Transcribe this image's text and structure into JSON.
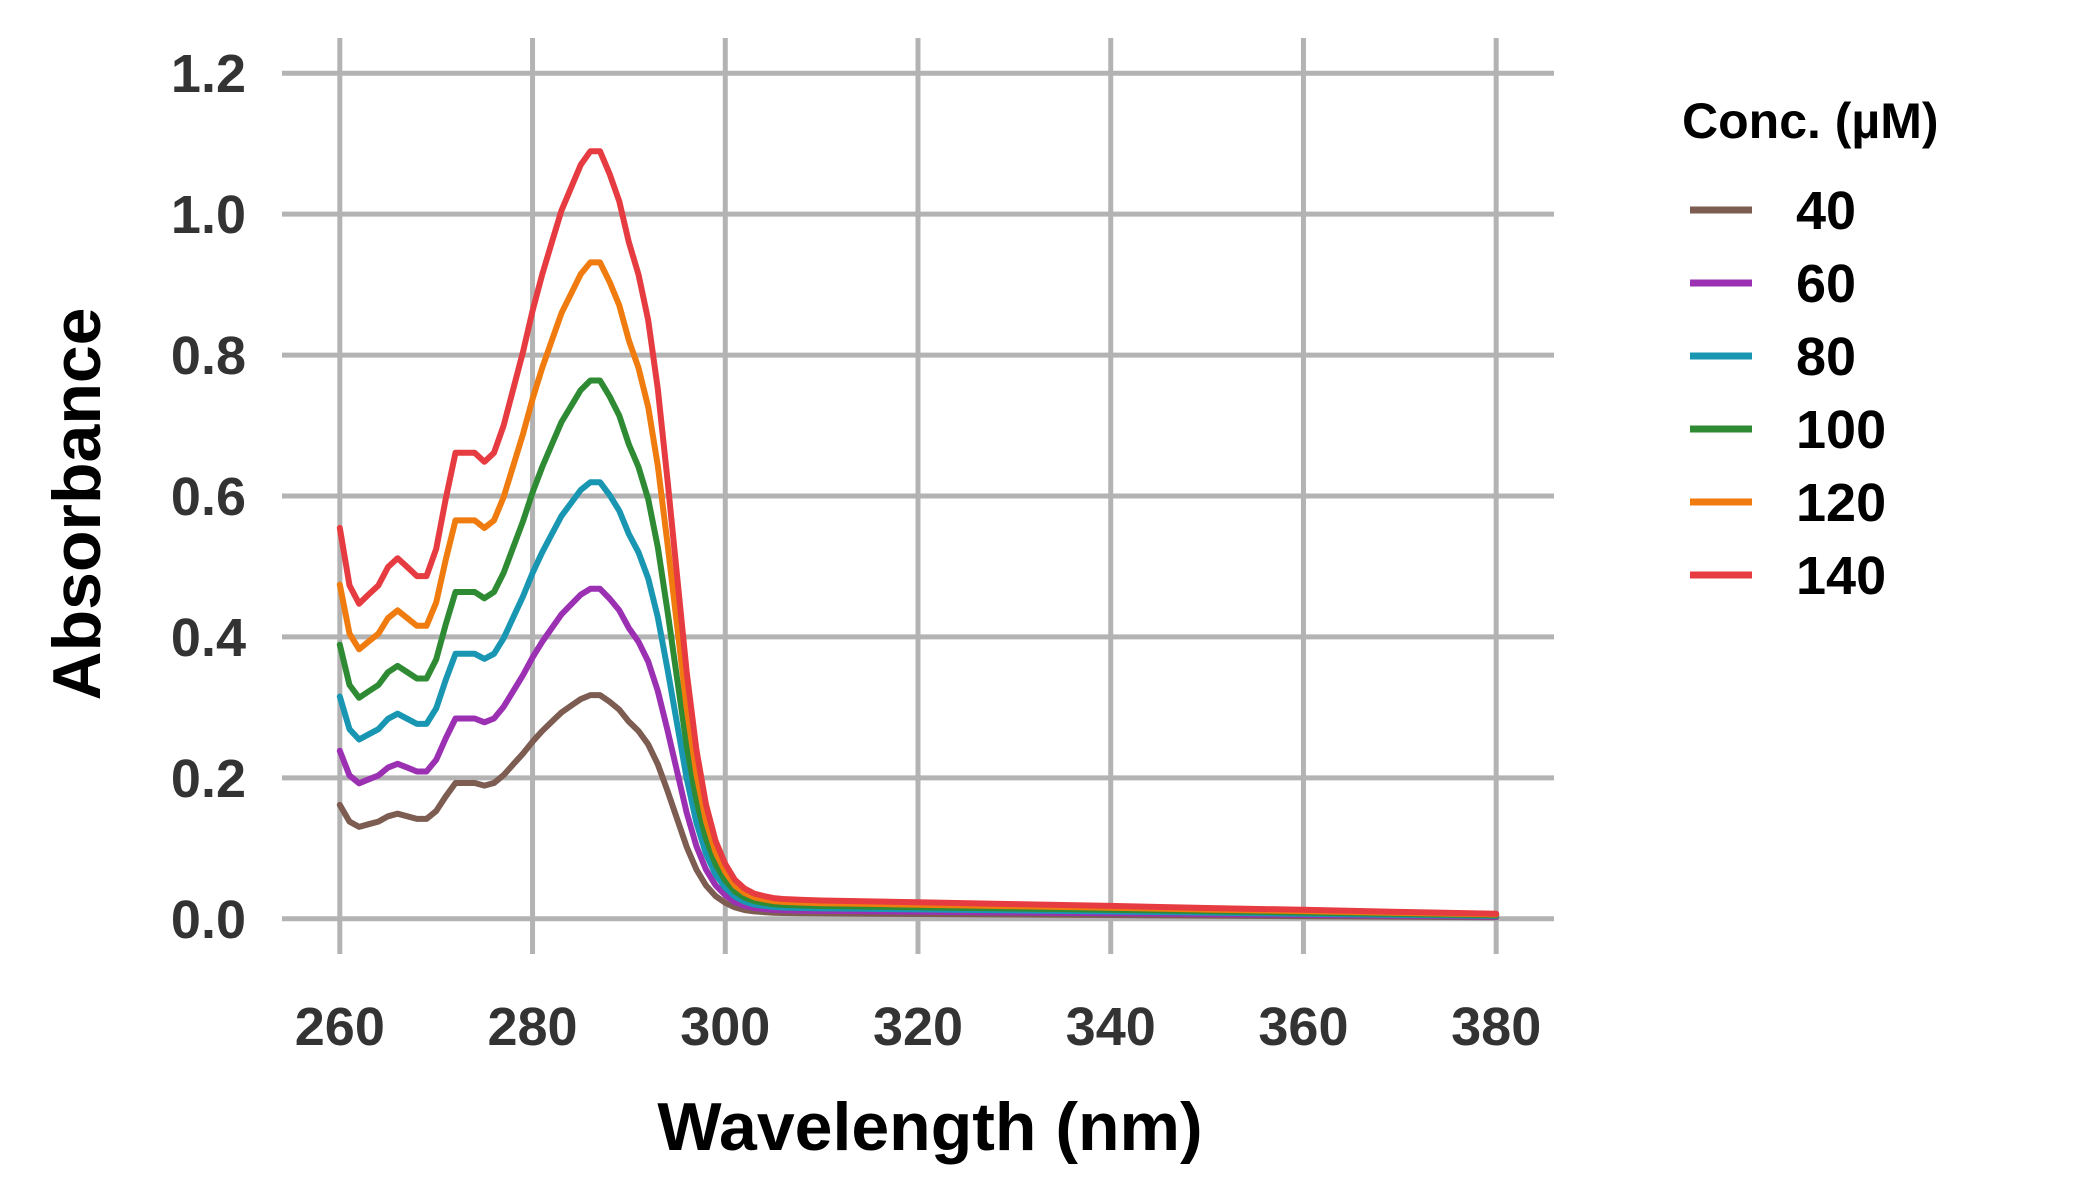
{
  "chart_data": {
    "type": "line",
    "title": "",
    "xlabel": "Wavelength (nm)",
    "ylabel": "Absorbance",
    "xlim": [
      254,
      386
    ],
    "ylim": [
      -0.05,
      1.25
    ],
    "xticks": [
      "260",
      "280",
      "300",
      "320",
      "340",
      "360",
      "380"
    ],
    "xtick_values": [
      260,
      280,
      300,
      320,
      340,
      360,
      380
    ],
    "yticks": [
      "0.0",
      "0.2",
      "0.4",
      "0.6",
      "0.8",
      "1.0",
      "1.2"
    ],
    "ytick_values": [
      0.0,
      0.2,
      0.4,
      0.6,
      0.8,
      1.0,
      1.2
    ],
    "grid": true,
    "legend_title": "Conc. (µM)",
    "legend_position": "right",
    "x": [
      260,
      261,
      262,
      263,
      264,
      265,
      266,
      267,
      268,
      269,
      270,
      271,
      272,
      273,
      274,
      275,
      276,
      277,
      278,
      279,
      280,
      281,
      282,
      283,
      284,
      285,
      286,
      287,
      288,
      289,
      290,
      291,
      292,
      293,
      294,
      295,
      296,
      297,
      298,
      299,
      300,
      301,
      302,
      303,
      304,
      305,
      306,
      308,
      310,
      315,
      320,
      330,
      340,
      350,
      360,
      370,
      380
    ],
    "base_profile": [
      0.1306,
      0.1114,
      0.1053,
      0.1084,
      0.1114,
      0.1175,
      0.1205,
      0.1175,
      0.1145,
      0.1145,
      0.1236,
      0.1404,
      0.1557,
      0.1557,
      0.1557,
      0.1527,
      0.1557,
      0.1648,
      0.1771,
      0.1893,
      0.2031,
      0.2153,
      0.226,
      0.2367,
      0.2443,
      0.2519,
      0.2565,
      0.2565,
      0.2489,
      0.2397,
      0.226,
      0.2153,
      0.2,
      0.1771,
      0.1466,
      0.1145,
      0.0824,
      0.0565,
      0.0382,
      0.026,
      0.0183,
      0.013,
      0.0101,
      0.0084,
      0.0076,
      0.0069,
      0.0066,
      0.0063,
      0.0061,
      0.0058,
      0.0055,
      0.0049,
      0.0043,
      0.0036,
      0.003,
      0.0023,
      0.0017
    ],
    "series": [
      {
        "name": "40",
        "scale": 1.2376,
        "color": "#7d5c52"
      },
      {
        "name": "60",
        "scale": 1.8256,
        "color": "#9b30b3"
      },
      {
        "name": "80",
        "scale": 2.4156,
        "color": "#1997b2"
      },
      {
        "name": "100",
        "scale": 2.9783,
        "color": "#2e8b34"
      },
      {
        "name": "120",
        "scale": 3.6315,
        "color": "#f07b0f"
      },
      {
        "name": "140",
        "scale": 4.2471,
        "color": "#e63c41"
      }
    ]
  }
}
